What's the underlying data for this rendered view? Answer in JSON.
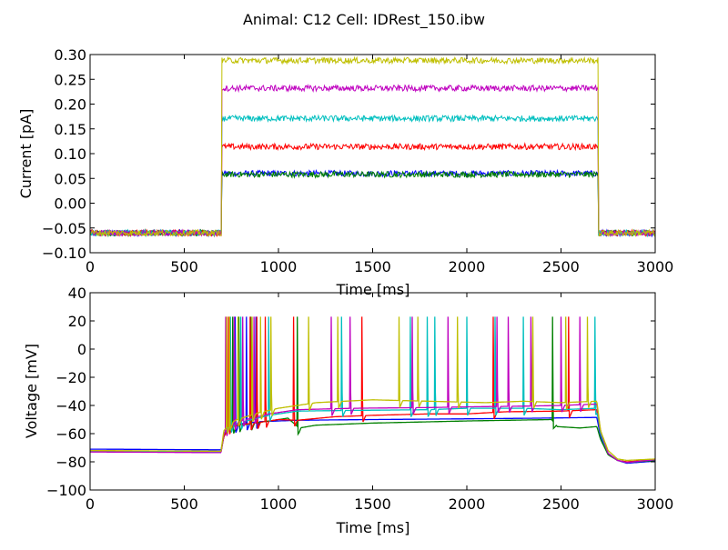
{
  "figure": {
    "title": "Animal: C12 Cell: IDRest_150.ibw"
  },
  "colors": {
    "blue": "#0000ff",
    "green": "#008000",
    "red": "#ff0000",
    "cyan": "#00bfbf",
    "magenta": "#bf00bf",
    "olive": "#bfbf00"
  },
  "chart_data": [
    {
      "type": "line",
      "panel": "top",
      "xlabel": "Time [ms]",
      "ylabel": "Current [pA]",
      "xlim": [
        0,
        3000
      ],
      "ylim": [
        -0.1,
        0.3
      ],
      "xticks": [
        "0",
        "500",
        "1000",
        "1500",
        "2000",
        "2500",
        "3000"
      ],
      "yticks": [
        "−0.10",
        "−0.05",
        "0.00",
        "0.05",
        "0.10",
        "0.15",
        "0.20",
        "0.25",
        "0.30"
      ],
      "grid": false,
      "stimulus_on_ms": 700,
      "stimulus_off_ms": 2700,
      "series": [
        {
          "color": "blue",
          "baseline": -0.06,
          "step": 0.06
        },
        {
          "color": "green",
          "baseline": -0.06,
          "step": 0.058
        },
        {
          "color": "red",
          "baseline": -0.06,
          "step": 0.114
        },
        {
          "color": "cyan",
          "baseline": -0.06,
          "step": 0.171
        },
        {
          "color": "magenta",
          "baseline": -0.06,
          "step": 0.232
        },
        {
          "color": "olive",
          "baseline": -0.06,
          "step": 0.288
        }
      ]
    },
    {
      "type": "line",
      "panel": "bottom",
      "xlabel": "Time [ms]",
      "ylabel": "Voltage [mV]",
      "xlim": [
        0,
        3000
      ],
      "ylim": [
        -100,
        40
      ],
      "xticks": [
        "0",
        "500",
        "1000",
        "1500",
        "2000",
        "2500",
        "3000"
      ],
      "yticks": [
        "−100",
        "−80",
        "−60",
        "−40",
        "−20",
        "0",
        "20",
        "40"
      ],
      "grid": false,
      "series": [
        {
          "color": "blue",
          "points": [
            [
              0,
              -71
            ],
            [
              695,
              -71.5
            ],
            [
              710,
              -62
            ],
            [
              730,
              -57
            ],
            [
              760,
              -55
            ],
            [
              800,
              -53
            ],
            [
              900,
              -51.5
            ],
            [
              1100,
              -50.5
            ],
            [
              1500,
              -50
            ],
            [
              2000,
              -49.5
            ],
            [
              2400,
              -49
            ],
            [
              2690,
              -48.5
            ],
            [
              2710,
              -62
            ],
            [
              2750,
              -74
            ],
            [
              2800,
              -79
            ],
            [
              2850,
              -81
            ],
            [
              3000,
              -79.5
            ]
          ],
          "spikes": [
            770,
            830,
            880
          ]
        },
        {
          "color": "green",
          "points": [
            [
              0,
              -72.5
            ],
            [
              695,
              -73
            ],
            [
              710,
              -62
            ],
            [
              740,
              -56
            ],
            [
              780,
              -54.5
            ],
            [
              850,
              -53
            ],
            [
              950,
              -51
            ],
            [
              1050,
              -49
            ],
            [
              1110,
              -56
            ],
            [
              1200,
              -54
            ],
            [
              1500,
              -52.5
            ],
            [
              2000,
              -51
            ],
            [
              2450,
              -50
            ],
            [
              2480,
              -55
            ],
            [
              2600,
              -56
            ],
            [
              2690,
              -55
            ],
            [
              2710,
              -64
            ],
            [
              2750,
              -75
            ],
            [
              2800,
              -79
            ],
            [
              2850,
              -80.5
            ],
            [
              3000,
              -79
            ]
          ],
          "spikes": [
            757,
            790,
            853,
            1100,
            2455
          ]
        },
        {
          "color": "red",
          "points": [
            [
              0,
              -72.5
            ],
            [
              695,
              -73
            ],
            [
              710,
              -62
            ],
            [
              740,
              -56
            ],
            [
              780,
              -54
            ],
            [
              900,
              -52
            ],
            [
              1000,
              -50
            ],
            [
              1100,
              -50.5
            ],
            [
              1300,
              -48
            ],
            [
              1500,
              -47
            ],
            [
              1800,
              -46
            ],
            [
              2000,
              -46
            ],
            [
              2200,
              -44.5
            ],
            [
              2500,
              -44
            ],
            [
              2690,
              -43
            ],
            [
              2710,
              -60
            ],
            [
              2750,
              -74
            ],
            [
              2800,
              -79
            ],
            [
              2850,
              -80
            ],
            [
              3000,
              -78.5
            ]
          ],
          "spikes": [
            735,
            850,
            885,
            930,
            1080,
            1443,
            2140,
            2540
          ]
        },
        {
          "color": "cyan",
          "points": [
            [
              0,
              -72.5
            ],
            [
              695,
              -73
            ],
            [
              710,
              -60
            ],
            [
              740,
              -55
            ],
            [
              800,
              -52
            ],
            [
              950,
              -47
            ],
            [
              1100,
              -44
            ],
            [
              1400,
              -43.5
            ],
            [
              1800,
              -43
            ],
            [
              2000,
              -42
            ],
            [
              2300,
              -42
            ],
            [
              2500,
              -43
            ],
            [
              2690,
              -42
            ],
            [
              2710,
              -60
            ],
            [
              2750,
              -74
            ],
            [
              2800,
              -79
            ],
            [
              2850,
              -80.5
            ],
            [
              3000,
              -78.5
            ]
          ],
          "spikes": [
            745,
            800,
            948,
            1335,
            1700,
            1790,
            1830,
            2000,
            2150,
            2300,
            2680
          ]
        },
        {
          "color": "magenta",
          "points": [
            [
              0,
              -73
            ],
            [
              695,
              -73.5
            ],
            [
              710,
              -60
            ],
            [
              740,
              -55
            ],
            [
              800,
              -51
            ],
            [
              950,
              -46
            ],
            [
              1100,
              -43
            ],
            [
              1400,
              -42
            ],
            [
              1800,
              -41.5
            ],
            [
              2000,
              -41
            ],
            [
              2300,
              -40.5
            ],
            [
              2500,
              -40
            ],
            [
              2690,
              -39
            ],
            [
              2710,
              -58
            ],
            [
              2750,
              -74
            ],
            [
              2800,
              -79
            ],
            [
              2850,
              -80.5
            ],
            [
              3000,
              -78.5
            ]
          ],
          "spikes": [
            720,
            765,
            810,
            870,
            1280,
            1380,
            1710,
            1900,
            2160,
            2220,
            2340,
            2500,
            2600
          ]
        },
        {
          "color": "olive",
          "points": [
            [
              0,
              -72
            ],
            [
              695,
              -72.5
            ],
            [
              710,
              -58
            ],
            [
              740,
              -53
            ],
            [
              780,
              -50
            ],
            [
              900,
              -45
            ],
            [
              1000,
              -42
            ],
            [
              1200,
              -38
            ],
            [
              1500,
              -36
            ],
            [
              1800,
              -37
            ],
            [
              2100,
              -38
            ],
            [
              2300,
              -37
            ],
            [
              2500,
              -38
            ],
            [
              2690,
              -37
            ],
            [
              2710,
              -58
            ],
            [
              2750,
              -72
            ],
            [
              2800,
              -78
            ],
            [
              2850,
              -79
            ],
            [
              3000,
              -78
            ]
          ],
          "spikes": [
            725,
            740,
            785,
            860,
            905,
            960,
            1160,
            1315,
            1640,
            1740,
            1950,
            2350,
            2525,
            2640
          ]
        }
      ]
    }
  ]
}
